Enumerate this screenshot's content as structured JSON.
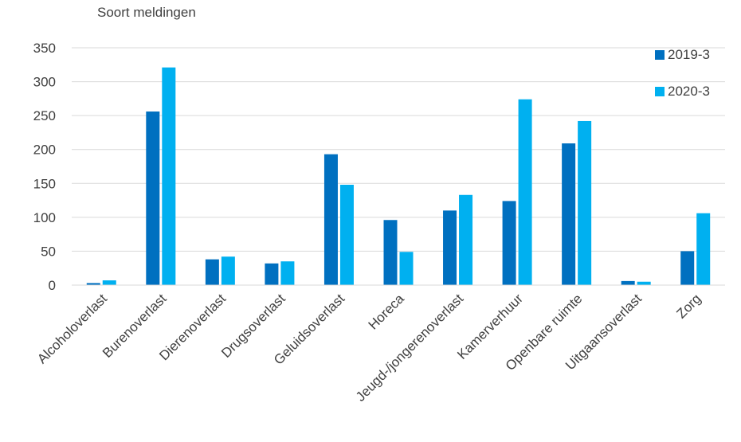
{
  "chart_data": {
    "type": "bar",
    "title": "Soort meldingen",
    "xlabel": "",
    "ylabel": "",
    "ylim": [
      0,
      350
    ],
    "yticks": [
      0,
      50,
      100,
      150,
      200,
      250,
      300,
      350
    ],
    "grid": true,
    "legend_position": "top-right",
    "categories": [
      "Alcoholoverlast",
      "Burenoverlast",
      "Dierenoverlast",
      "Drugsoverlast",
      "Geluidsoverlast",
      "Horeca",
      "Jeugd-/jongerenoverlast",
      "Kamerverhuur",
      "Openbare ruimte",
      "Uitgaansoverlast",
      "Zorg"
    ],
    "series": [
      {
        "name": "2019-3",
        "color": "#0070C0",
        "values": [
          3,
          256,
          38,
          32,
          193,
          96,
          110,
          124,
          209,
          6,
          50
        ]
      },
      {
        "name": "2020-3",
        "color": "#00B0F0",
        "values": [
          7,
          321,
          42,
          35,
          148,
          49,
          133,
          274,
          242,
          5,
          106
        ]
      }
    ]
  }
}
